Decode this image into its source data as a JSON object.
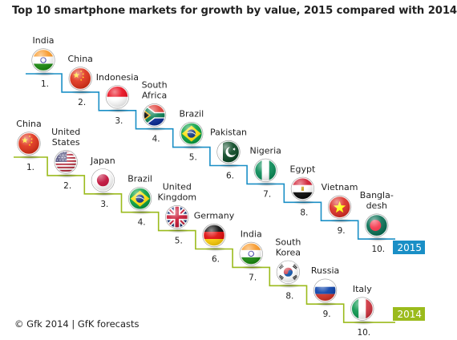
{
  "title": "Top 10 smartphone markets for growth by value, 2015 compared with 2014",
  "copyright": "© Gfk 2014 | GfK forecasts",
  "colors": {
    "line2015": "#1a8fc6",
    "line2014": "#9bbb1c",
    "text": "#222222"
  },
  "chart_data": {
    "type": "table",
    "series": [
      {
        "name": "2015",
        "ranks": [
          "1.",
          "2.",
          "3.",
          "4.",
          "5.",
          "6.",
          "7.",
          "8.",
          "9.",
          "10."
        ],
        "countries": [
          {
            "label": "India",
            "flag": "india-flag"
          },
          {
            "label": "China",
            "flag": "china-flag"
          },
          {
            "label": "Indonesia",
            "flag": "indonesia-flag"
          },
          {
            "label": "South\nAfrica",
            "flag": "south-africa-flag"
          },
          {
            "label": "Brazil",
            "flag": "brazil-flag"
          },
          {
            "label": "Pakistan",
            "flag": "pakistan-flag"
          },
          {
            "label": "Nigeria",
            "flag": "nigeria-flag"
          },
          {
            "label": "Egypt",
            "flag": "egypt-flag"
          },
          {
            "label": "Vietnam",
            "flag": "vietnam-flag"
          },
          {
            "label": "Bangla-\ndesh",
            "flag": "bangladesh-flag"
          }
        ]
      },
      {
        "name": "2014",
        "ranks": [
          "1.",
          "2.",
          "3.",
          "4.",
          "5.",
          "6.",
          "7.",
          "8.",
          "9.",
          "10."
        ],
        "countries": [
          {
            "label": "China",
            "flag": "china-flag"
          },
          {
            "label": "United\nStates",
            "flag": "usa-flag"
          },
          {
            "label": "Japan",
            "flag": "japan-flag"
          },
          {
            "label": "Brazil",
            "flag": "brazil-flag"
          },
          {
            "label": "United\nKingdom",
            "flag": "uk-flag"
          },
          {
            "label": "Germany",
            "flag": "germany-flag"
          },
          {
            "label": "India",
            "flag": "india-flag"
          },
          {
            "label": "South\nKorea",
            "flag": "south-korea-flag"
          },
          {
            "label": "Russia",
            "flag": "russia-flag"
          },
          {
            "label": "Italy",
            "flag": "italy-flag"
          }
        ]
      }
    ]
  }
}
